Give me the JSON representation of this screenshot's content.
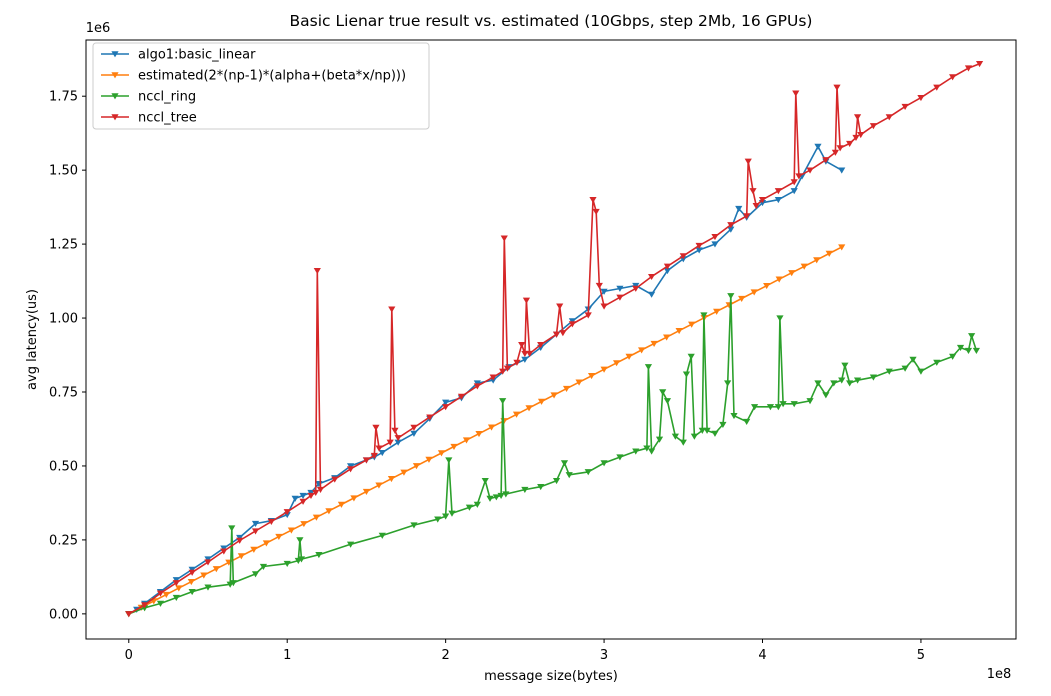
{
  "chart_data": {
    "type": "line",
    "title": "Basic Lienar true result vs. estimated (10Gbps, step 2Mb, 16 GPUs)",
    "xlabel": "message size(bytes)",
    "ylabel": "avg latency(us)",
    "x_offset_label": "1e8",
    "y_offset_label": "1e6",
    "xlim": [
      -27000000.0,
      560000000.0
    ],
    "ylim": [
      -85000.0,
      1940000.0
    ],
    "xticks": [
      0,
      100000000,
      200000000,
      300000000,
      400000000,
      500000000
    ],
    "xtick_labels": [
      "0",
      "1",
      "2",
      "3",
      "4",
      "5"
    ],
    "yticks": [
      0,
      250000,
      500000,
      750000,
      1000000,
      1250000,
      1500000,
      1750000
    ],
    "ytick_labels": [
      "0.00",
      "0.25",
      "0.50",
      "0.75",
      "1.00",
      "1.25",
      "1.50",
      "1.75"
    ],
    "grid": false,
    "legend_position": "top-left",
    "series": [
      {
        "name": "algo1:basic_linear",
        "color": "#1f77b4",
        "marker": "triangle-down",
        "points": [
          [
            0,
            0
          ],
          [
            5000000,
            15000
          ],
          [
            10000000,
            35000
          ],
          [
            20000000,
            75000
          ],
          [
            30000000,
            115000
          ],
          [
            40000000,
            150000
          ],
          [
            50000000,
            185000
          ],
          [
            60000000,
            222000
          ],
          [
            70000000,
            258000
          ],
          [
            80000000,
            305000
          ],
          [
            90000000,
            315000
          ],
          [
            100000000,
            335000
          ],
          [
            105000000,
            390000
          ],
          [
            110000000,
            400000
          ],
          [
            115000000,
            410000
          ],
          [
            120000000,
            440000
          ],
          [
            130000000,
            460000
          ],
          [
            140000000,
            500000
          ],
          [
            150000000,
            520000
          ],
          [
            155000000,
            530000
          ],
          [
            160000000,
            545000
          ],
          [
            170000000,
            580000
          ],
          [
            180000000,
            610000
          ],
          [
            190000000,
            660000
          ],
          [
            200000000,
            715000
          ],
          [
            210000000,
            730000
          ],
          [
            220000000,
            780000
          ],
          [
            230000000,
            790000
          ],
          [
            240000000,
            835000
          ],
          [
            250000000,
            860000
          ],
          [
            260000000,
            900000
          ],
          [
            270000000,
            945000
          ],
          [
            280000000,
            990000
          ],
          [
            290000000,
            1030000
          ],
          [
            300000000,
            1090000
          ],
          [
            310000000,
            1100000
          ],
          [
            320000000,
            1110000
          ],
          [
            330000000,
            1080000
          ],
          [
            340000000,
            1160000
          ],
          [
            350000000,
            1200000
          ],
          [
            360000000,
            1230000
          ],
          [
            370000000,
            1250000
          ],
          [
            380000000,
            1300000
          ],
          [
            385000000,
            1370000
          ],
          [
            390000000,
            1340000
          ],
          [
            400000000,
            1390000
          ],
          [
            410000000,
            1400000
          ],
          [
            420000000,
            1430000
          ],
          [
            425000000,
            1480000
          ],
          [
            435000000,
            1580000
          ],
          [
            440000000,
            1530000
          ],
          [
            450000000,
            1500000
          ]
        ]
      },
      {
        "name": "estimated(2*(np-1)*(alpha+(beta*x/np)))",
        "color": "#ff7f0e",
        "marker": "triangle-down",
        "points": [
          [
            0,
            0
          ],
          [
            450000000,
            1240000
          ]
        ]
      },
      {
        "name": "nccl_ring",
        "color": "#2ca02c",
        "marker": "triangle-down",
        "points": [
          [
            0,
            0
          ],
          [
            10000000,
            20000
          ],
          [
            20000000,
            35000
          ],
          [
            30000000,
            55000
          ],
          [
            40000000,
            75000
          ],
          [
            50000000,
            90000
          ],
          [
            64000000,
            100000
          ],
          [
            65000000,
            290000
          ],
          [
            66000000,
            105000
          ],
          [
            80000000,
            135000
          ],
          [
            85000000,
            160000
          ],
          [
            100000000,
            170000
          ],
          [
            107000000,
            180000
          ],
          [
            108000000,
            250000
          ],
          [
            109000000,
            185000
          ],
          [
            120000000,
            200000
          ],
          [
            140000000,
            235000
          ],
          [
            160000000,
            265000
          ],
          [
            180000000,
            300000
          ],
          [
            195000000,
            320000
          ],
          [
            200000000,
            330000
          ],
          [
            202000000,
            520000
          ],
          [
            204000000,
            340000
          ],
          [
            215000000,
            360000
          ],
          [
            220000000,
            370000
          ],
          [
            225000000,
            450000
          ],
          [
            228000000,
            390000
          ],
          [
            232000000,
            395000
          ],
          [
            235000000,
            400000
          ],
          [
            236000000,
            720000
          ],
          [
            238000000,
            405000
          ],
          [
            250000000,
            420000
          ],
          [
            260000000,
            430000
          ],
          [
            270000000,
            450000
          ],
          [
            275000000,
            510000
          ],
          [
            278000000,
            470000
          ],
          [
            290000000,
            480000
          ],
          [
            300000000,
            510000
          ],
          [
            310000000,
            530000
          ],
          [
            320000000,
            550000
          ],
          [
            327000000,
            560000
          ],
          [
            328000000,
            835000
          ],
          [
            330000000,
            550000
          ],
          [
            335000000,
            590000
          ],
          [
            337000000,
            750000
          ],
          [
            340000000,
            720000
          ],
          [
            345000000,
            600000
          ],
          [
            350000000,
            580000
          ],
          [
            352000000,
            810000
          ],
          [
            355000000,
            870000
          ],
          [
            357000000,
            600000
          ],
          [
            362000000,
            620000
          ],
          [
            363000000,
            1010000
          ],
          [
            365000000,
            620000
          ],
          [
            370000000,
            610000
          ],
          [
            375000000,
            640000
          ],
          [
            378000000,
            780000
          ],
          [
            380000000,
            1075000
          ],
          [
            382000000,
            670000
          ],
          [
            390000000,
            650000
          ],
          [
            395000000,
            700000
          ],
          [
            405000000,
            700000
          ],
          [
            410000000,
            700000
          ],
          [
            411000000,
            1000000
          ],
          [
            413000000,
            710000
          ],
          [
            420000000,
            710000
          ],
          [
            430000000,
            720000
          ],
          [
            435000000,
            780000
          ],
          [
            440000000,
            740000
          ],
          [
            445000000,
            780000
          ],
          [
            450000000,
            790000
          ],
          [
            452000000,
            840000
          ],
          [
            455000000,
            780000
          ],
          [
            460000000,
            790000
          ],
          [
            470000000,
            800000
          ],
          [
            480000000,
            820000
          ],
          [
            490000000,
            830000
          ],
          [
            495000000,
            860000
          ],
          [
            500000000,
            820000
          ],
          [
            510000000,
            850000
          ],
          [
            520000000,
            870000
          ],
          [
            525000000,
            900000
          ],
          [
            530000000,
            890000
          ],
          [
            532000000,
            940000
          ],
          [
            535000000,
            890000
          ]
        ]
      },
      {
        "name": "nccl_tree",
        "color": "#d62728",
        "marker": "triangle-down",
        "points": [
          [
            0,
            0
          ],
          [
            10000000,
            30000
          ],
          [
            20000000,
            70000
          ],
          [
            30000000,
            105000
          ],
          [
            40000000,
            140000
          ],
          [
            50000000,
            175000
          ],
          [
            60000000,
            212000
          ],
          [
            70000000,
            248000
          ],
          [
            80000000,
            280000
          ],
          [
            90000000,
            312000
          ],
          [
            100000000,
            345000
          ],
          [
            110000000,
            380000
          ],
          [
            115000000,
            400000
          ],
          [
            118000000,
            410000
          ],
          [
            119000000,
            1160000
          ],
          [
            121000000,
            420000
          ],
          [
            130000000,
            455000
          ],
          [
            140000000,
            490000
          ],
          [
            150000000,
            520000
          ],
          [
            155000000,
            535000
          ],
          [
            156000000,
            630000
          ],
          [
            158000000,
            560000
          ],
          [
            165000000,
            580000
          ],
          [
            166000000,
            1030000
          ],
          [
            168000000,
            620000
          ],
          [
            170000000,
            595000
          ],
          [
            180000000,
            630000
          ],
          [
            190000000,
            665000
          ],
          [
            200000000,
            700000
          ],
          [
            210000000,
            735000
          ],
          [
            220000000,
            770000
          ],
          [
            230000000,
            800000
          ],
          [
            236000000,
            820000
          ],
          [
            237000000,
            1270000
          ],
          [
            239000000,
            830000
          ],
          [
            245000000,
            850000
          ],
          [
            248000000,
            910000
          ],
          [
            250000000,
            880000
          ],
          [
            251000000,
            1060000
          ],
          [
            253000000,
            880000
          ],
          [
            260000000,
            910000
          ],
          [
            270000000,
            945000
          ],
          [
            272000000,
            1040000
          ],
          [
            274000000,
            950000
          ],
          [
            280000000,
            980000
          ],
          [
            290000000,
            1010000
          ],
          [
            293000000,
            1400000
          ],
          [
            295000000,
            1360000
          ],
          [
            297000000,
            1110000
          ],
          [
            300000000,
            1040000
          ],
          [
            310000000,
            1070000
          ],
          [
            320000000,
            1100000
          ],
          [
            330000000,
            1140000
          ],
          [
            340000000,
            1175000
          ],
          [
            350000000,
            1210000
          ],
          [
            360000000,
            1245000
          ],
          [
            370000000,
            1275000
          ],
          [
            380000000,
            1315000
          ],
          [
            390000000,
            1345000
          ],
          [
            391000000,
            1530000
          ],
          [
            394000000,
            1430000
          ],
          [
            396000000,
            1380000
          ],
          [
            400000000,
            1400000
          ],
          [
            410000000,
            1430000
          ],
          [
            420000000,
            1460000
          ],
          [
            421000000,
            1760000
          ],
          [
            423000000,
            1480000
          ],
          [
            430000000,
            1500000
          ],
          [
            440000000,
            1535000
          ],
          [
            446000000,
            1560000
          ],
          [
            447000000,
            1780000
          ],
          [
            449000000,
            1575000
          ],
          [
            455000000,
            1590000
          ],
          [
            459000000,
            1610000
          ],
          [
            460000000,
            1680000
          ],
          [
            462000000,
            1620000
          ],
          [
            470000000,
            1650000
          ],
          [
            480000000,
            1680000
          ],
          [
            490000000,
            1715000
          ],
          [
            500000000,
            1745000
          ],
          [
            510000000,
            1780000
          ],
          [
            520000000,
            1815000
          ],
          [
            530000000,
            1845000
          ],
          [
            537000000,
            1860000
          ]
        ]
      }
    ]
  }
}
